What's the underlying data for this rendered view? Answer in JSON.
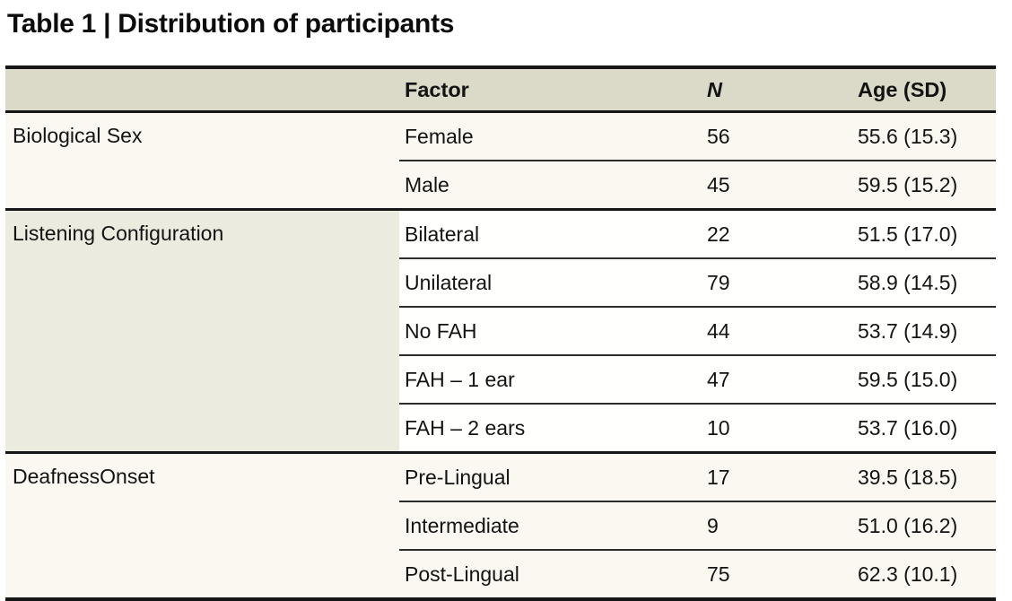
{
  "title": "Table 1 | Distribution of participants",
  "colors": {
    "header_bg": "#dbd9c7",
    "band_cream": "#faf8f0",
    "band_white": "#fffffe",
    "group_cell_beige": "#ecebdf",
    "rule_heavy": "#161616",
    "rule_light": "#2c2c2a",
    "text": "#131313",
    "page_bg": "#ffffff"
  },
  "table": {
    "columns": [
      "",
      "Factor",
      "N",
      "Age (SD)"
    ],
    "groups": [
      {
        "label": "Biological Sex",
        "shaded": true,
        "rows": [
          {
            "factor": "Female",
            "n": "56",
            "age_sd": "55.6 (15.3)"
          },
          {
            "factor": "Male",
            "n": "45",
            "age_sd": "59.5 (15.2)"
          }
        ]
      },
      {
        "label": "Listening Configuration",
        "shaded": false,
        "rows": [
          {
            "factor": "Bilateral",
            "n": "22",
            "age_sd": "51.5 (17.0)"
          },
          {
            "factor": "Unilateral",
            "n": "79",
            "age_sd": "58.9 (14.5)"
          },
          {
            "factor": "No FAH",
            "n": "44",
            "age_sd": "53.7 (14.9)"
          },
          {
            "factor": "FAH – 1 ear",
            "n": "47",
            "age_sd": "59.5 (15.0)"
          },
          {
            "factor": "FAH – 2 ears",
            "n": "10",
            "age_sd": "53.7 (16.0)"
          }
        ]
      },
      {
        "label": "DeafnessOnset",
        "shaded": true,
        "rows": [
          {
            "factor": "Pre-Lingual",
            "n": "17",
            "age_sd": "39.5 (18.5)"
          },
          {
            "factor": "Intermediate",
            "n": "9",
            "age_sd": "51.0 (16.2)"
          },
          {
            "factor": "Post-Lingual",
            "n": "75",
            "age_sd": "62.3 (10.1)"
          }
        ]
      }
    ]
  }
}
